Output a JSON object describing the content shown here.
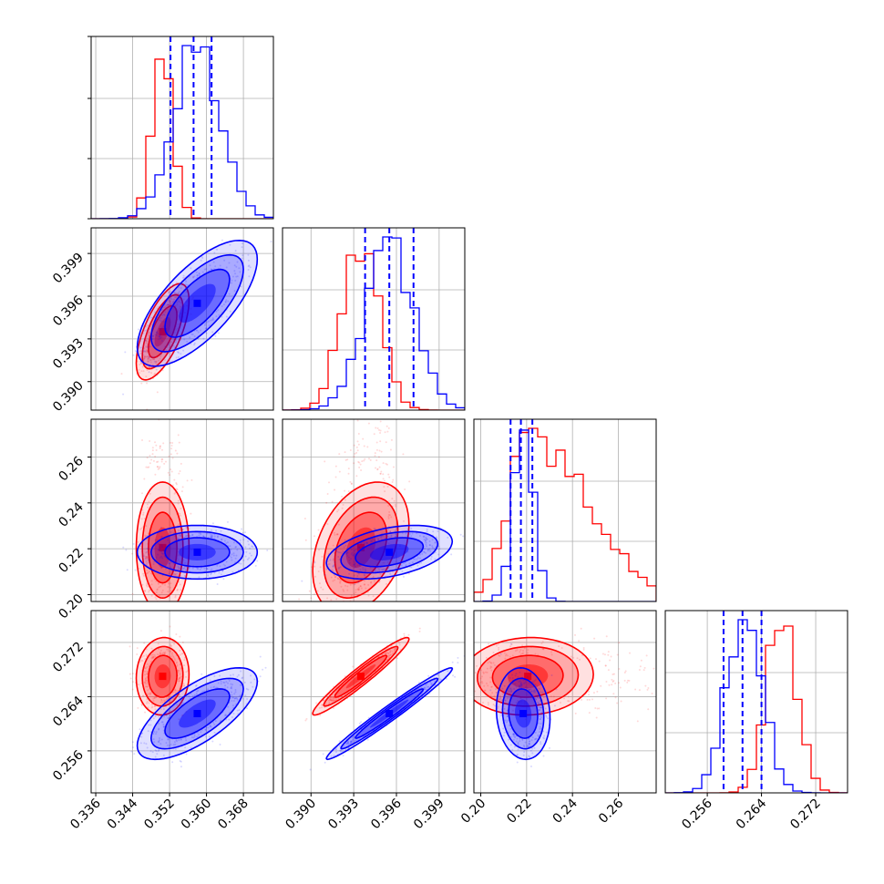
{
  "chart_data": {
    "type": "corner",
    "parameters": [
      {
        "ticks": [
          0.336,
          0.344,
          0.352,
          0.36,
          0.368
        ],
        "tick_labels": [
          "0.336",
          "0.344",
          "0.352",
          "0.360",
          "0.368"
        ],
        "range": [
          0.335,
          0.3745
        ]
      },
      {
        "ticks": [
          0.39,
          0.393,
          0.396,
          0.399
        ],
        "tick_labels": [
          "0.390",
          "0.393",
          "0.396",
          "0.399"
        ],
        "range": [
          0.388,
          0.4008
        ]
      },
      {
        "ticks": [
          0.2,
          0.22,
          0.24,
          0.26
        ],
        "tick_labels": [
          "0.20",
          "0.22",
          "0.24",
          "0.26"
        ],
        "range": [
          0.197,
          0.2765
        ]
      },
      {
        "ticks": [
          0.256,
          0.264,
          0.272
        ],
        "tick_labels": [
          "0.256",
          "0.264",
          "0.272"
        ],
        "range": [
          0.2498,
          0.2767
        ]
      }
    ],
    "series": [
      {
        "color": "#ff0000",
        "mean": [
          0.3505,
          0.3935,
          0.2205,
          0.267
        ],
        "std": [
          0.0022,
          0.0013,
          0.011,
          0.0022
        ],
        "corr": [
          [
            0,
            0.65,
            0.0,
            0.05
          ],
          [
            0,
            0,
            0.35,
            0.96
          ],
          [
            0,
            0,
            0,
            0.05
          ]
        ],
        "hist_skew": [
          0,
          0,
          1.3,
          0
        ]
      },
      {
        "color": "#0000ff",
        "mean": [
          0.358,
          0.3955,
          0.2185,
          0.2615
        ],
        "std": [
          0.005,
          0.0017,
          0.0045,
          0.0026
        ],
        "corr": [
          [
            0,
            0.7,
            0.0,
            0.7
          ],
          [
            0,
            0,
            0.4,
            0.98
          ],
          [
            0,
            0,
            0,
            -0.1
          ]
        ],
        "hist_skew": [
          0,
          0,
          0,
          0
        ]
      }
    ],
    "quantile_lines": {
      "color": "#0000ff",
      "style": "dashed",
      "values": [
        [
          0.3522,
          0.3572,
          0.3611
        ],
        [
          0.3938,
          0.3955,
          0.3972
        ],
        [
          0.213,
          0.2175,
          0.2225
        ],
        [
          0.2584,
          0.2612,
          0.264
        ]
      ]
    },
    "grid": true,
    "layout": "lower-triangular 4x4",
    "contours": "1, 2, 3 sigma levels per series",
    "scatter": "sample points drawn outside contours"
  }
}
